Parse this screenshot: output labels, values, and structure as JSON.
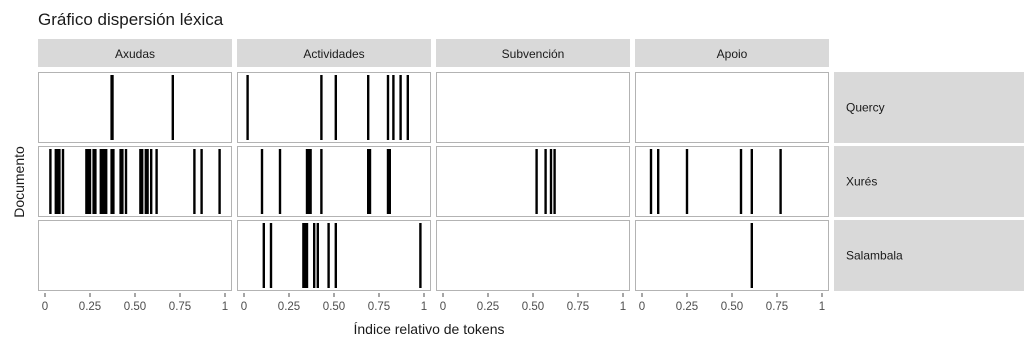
{
  "chart_data": {
    "type": "lexical-dispersion",
    "title": "Gráfico dispersión léxica",
    "xlabel": "Índice relativo de tokens",
    "ylabel": "Documento",
    "xlim": [
      0,
      1
    ],
    "x_ticks": [
      "0",
      "0.25",
      "0.50",
      "0.75",
      "1"
    ],
    "panels": [
      "Axudas",
      "Actividades",
      "Subvención",
      "Apoio"
    ],
    "documents": [
      "Quercy",
      "Xurés",
      "Salambala"
    ],
    "occurrences": {
      "Quercy": {
        "Axudas": [
          0.37,
          0.375,
          0.71
        ],
        "Actividades": [
          0.02,
          0.43,
          0.51,
          0.69,
          0.8,
          0.83,
          0.87,
          0.91
        ],
        "Subvención": [],
        "Apoio": []
      },
      "Xurés": {
        "Axudas": [
          0.03,
          0.06,
          0.07,
          0.08,
          0.1,
          0.23,
          0.24,
          0.25,
          0.27,
          0.28,
          0.31,
          0.32,
          0.33,
          0.34,
          0.37,
          0.38,
          0.42,
          0.43,
          0.45,
          0.53,
          0.54,
          0.56,
          0.57,
          0.59,
          0.62,
          0.83,
          0.87,
          0.97
        ],
        "Actividades": [
          0.1,
          0.2,
          0.35,
          0.36,
          0.37,
          0.43,
          0.69,
          0.7,
          0.8,
          0.81
        ],
        "Subvención": [
          0.52,
          0.57,
          0.6,
          0.62
        ],
        "Apoio": [
          0.05,
          0.09,
          0.25,
          0.55,
          0.61,
          0.77
        ]
      },
      "Salambala": {
        "Axudas": [],
        "Actividades": [
          0.11,
          0.15,
          0.33,
          0.34,
          0.35,
          0.39,
          0.41,
          0.47,
          0.51,
          0.98
        ],
        "Subvención": [],
        "Apoio": [
          0.61
        ]
      }
    },
    "colors": {
      "strip_bg": "#d9d9d9",
      "panel_border": "#b3b3b3",
      "mark": "#000000",
      "tick": "#4d4d4d",
      "text": "#1a1a1a"
    }
  }
}
